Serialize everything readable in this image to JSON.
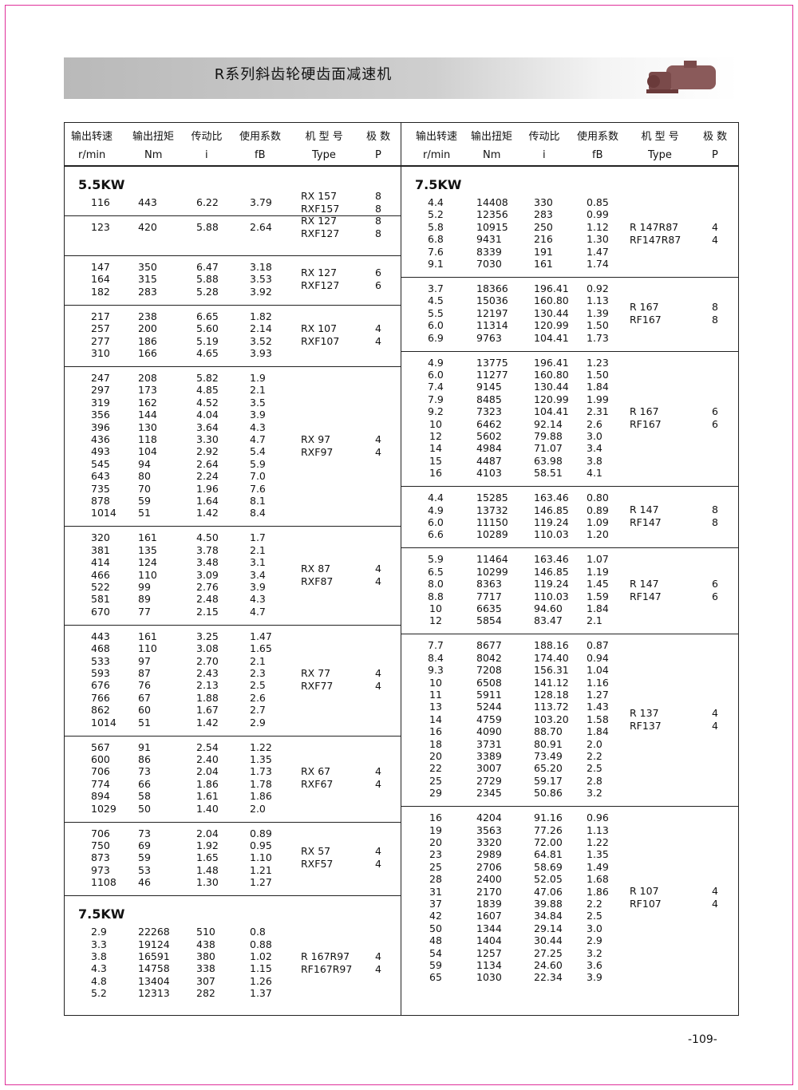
{
  "header": {
    "title": "R系列斜齿轮硬齿面减速机"
  },
  "tables": [
    {
      "columns": [
        {
          "label": "输出转速",
          "unit": "r/min"
        },
        {
          "label": "输出扭矩",
          "unit": "Nm"
        },
        {
          "label": "传动比",
          "unit": "i"
        },
        {
          "label": "使用系数",
          "unit": "fB"
        },
        {
          "label": "机 型 号",
          "unit": "Type"
        },
        {
          "label": "极 数",
          "unit": "P"
        }
      ],
      "groups": [
        {
          "power": "5.5KW",
          "rows": [
            [
              "116",
              "443",
              "6.22",
              "3.79"
            ]
          ],
          "models": [
            [
              "RX 157",
              "8"
            ],
            [
              "RXF157",
              "8"
            ]
          ]
        },
        {
          "rows": [
            [
              "123",
              "420",
              "5.88",
              "2.64"
            ]
          ],
          "models": [
            [
              "RX 127",
              "8"
            ],
            [
              "RXF127",
              "8"
            ]
          ]
        },
        {
          "rows": [
            [
              "147",
              "350",
              "6.47",
              "3.18"
            ],
            [
              "164",
              "315",
              "5.88",
              "3.53"
            ],
            [
              "182",
              "283",
              "5.28",
              "3.92"
            ]
          ],
          "models": [
            [
              "RX 127",
              "6"
            ],
            [
              "RXF127",
              "6"
            ]
          ]
        },
        {
          "rows": [
            [
              "217",
              "238",
              "6.65",
              "1.82"
            ],
            [
              "257",
              "200",
              "5.60",
              "2.14"
            ],
            [
              "277",
              "186",
              "5.19",
              "3.52"
            ],
            [
              "310",
              "166",
              "4.65",
              "3.93"
            ]
          ],
          "models": [
            [
              "RX 107",
              "4"
            ],
            [
              "RXF107",
              "4"
            ]
          ]
        },
        {
          "rows": [
            [
              "247",
              "208",
              "5.82",
              "1.9"
            ],
            [
              "297",
              "173",
              "4.85",
              "2.1"
            ],
            [
              "319",
              "162",
              "4.52",
              "3.5"
            ],
            [
              "356",
              "144",
              "4.04",
              "3.9"
            ],
            [
              "396",
              "130",
              "3.64",
              "4.3"
            ],
            [
              "436",
              "118",
              "3.30",
              "4.7"
            ],
            [
              "493",
              "104",
              "2.92",
              "5.4"
            ],
            [
              "545",
              "94",
              "2.64",
              "5.9"
            ],
            [
              "643",
              "80",
              "2.24",
              "7.0"
            ],
            [
              "735",
              "70",
              "1.96",
              "7.6"
            ],
            [
              "878",
              "59",
              "1.64",
              "8.1"
            ],
            [
              "1014",
              "51",
              "1.42",
              "8.4"
            ]
          ],
          "models": [
            [
              "RX 97",
              "4"
            ],
            [
              "RXF97",
              "4"
            ]
          ]
        },
        {
          "rows": [
            [
              "320",
              "161",
              "4.50",
              "1.7"
            ],
            [
              "381",
              "135",
              "3.78",
              "2.1"
            ],
            [
              "414",
              "124",
              "3.48",
              "3.1"
            ],
            [
              "466",
              "110",
              "3.09",
              "3.4"
            ],
            [
              "522",
              "99",
              "2.76",
              "3.9"
            ],
            [
              "581",
              "89",
              "2.48",
              "4.3"
            ],
            [
              "670",
              "77",
              "2.15",
              "4.7"
            ]
          ],
          "models": [
            [
              "RX 87",
              "4"
            ],
            [
              "RXF87",
              "4"
            ]
          ]
        },
        {
          "rows": [
            [
              "443",
              "161",
              "3.25",
              "1.47"
            ],
            [
              "468",
              "110",
              "3.08",
              "1.65"
            ],
            [
              "533",
              "97",
              "2.70",
              "2.1"
            ],
            [
              "593",
              "87",
              "2.43",
              "2.3"
            ],
            [
              "676",
              "76",
              "2.13",
              "2.5"
            ],
            [
              "766",
              "67",
              "1.88",
              "2.6"
            ],
            [
              "862",
              "60",
              "1.67",
              "2.7"
            ],
            [
              "1014",
              "51",
              "1.42",
              "2.9"
            ]
          ],
          "models": [
            [
              "RX 77",
              "4"
            ],
            [
              "RXF77",
              "4"
            ]
          ]
        },
        {
          "rows": [
            [
              "567",
              "91",
              "2.54",
              "1.22"
            ],
            [
              "600",
              "86",
              "2.40",
              "1.35"
            ],
            [
              "706",
              "73",
              "2.04",
              "1.73"
            ],
            [
              "774",
              "66",
              "1.86",
              "1.78"
            ],
            [
              "894",
              "58",
              "1.61",
              "1.86"
            ],
            [
              "1029",
              "50",
              "1.40",
              "2.0"
            ]
          ],
          "models": [
            [
              "RX 67",
              "4"
            ],
            [
              "RXF67",
              "4"
            ]
          ]
        },
        {
          "rows": [
            [
              "706",
              "73",
              "2.04",
              "0.89"
            ],
            [
              "750",
              "69",
              "1.92",
              "0.95"
            ],
            [
              "873",
              "59",
              "1.65",
              "1.10"
            ],
            [
              "973",
              "53",
              "1.48",
              "1.21"
            ],
            [
              "1108",
              "46",
              "1.30",
              "1.27"
            ]
          ],
          "models": [
            [
              "RX 57",
              "4"
            ],
            [
              "RXF57",
              "4"
            ]
          ]
        },
        {
          "power": "7.5KW",
          "rows": [
            [
              "2.9",
              "22268",
              "510",
              "0.8"
            ],
            [
              "3.3",
              "19124",
              "438",
              "0.88"
            ],
            [
              "3.8",
              "16591",
              "380",
              "1.02"
            ],
            [
              "4.3",
              "14758",
              "338",
              "1.15"
            ],
            [
              "4.8",
              "13404",
              "307",
              "1.26"
            ],
            [
              "5.2",
              "12313",
              "282",
              "1.37"
            ]
          ],
          "models": [
            [
              "R 167R97",
              "4"
            ],
            [
              "RF167R97",
              "4"
            ]
          ]
        }
      ]
    },
    {
      "columns": [
        {
          "label": "输出转速",
          "unit": "r/min"
        },
        {
          "label": "输出扭矩",
          "unit": "Nm"
        },
        {
          "label": "传动比",
          "unit": "i"
        },
        {
          "label": "使用系数",
          "unit": "fB"
        },
        {
          "label": "机 型 号",
          "unit": "Type"
        },
        {
          "label": "极 数",
          "unit": "P"
        }
      ],
      "groups": [
        {
          "power": "7.5KW",
          "rows": [
            [
              "4.4",
              "14408",
              "330",
              "0.85"
            ],
            [
              "5.2",
              "12356",
              "283",
              "0.99"
            ],
            [
              "5.8",
              "10915",
              "250",
              "1.12"
            ],
            [
              "6.8",
              "9431",
              "216",
              "1.30"
            ],
            [
              "7.6",
              "8339",
              "191",
              "1.47"
            ],
            [
              "9.1",
              "7030",
              "161",
              "1.74"
            ]
          ],
          "models": [
            [
              "R 147R87",
              "4"
            ],
            [
              "RF147R87",
              "4"
            ]
          ]
        },
        {
          "rows": [
            [
              "3.7",
              "18366",
              "196.41",
              "0.92"
            ],
            [
              "4.5",
              "15036",
              "160.80",
              "1.13"
            ],
            [
              "5.5",
              "12197",
              "130.44",
              "1.39"
            ],
            [
              "6.0",
              "11314",
              "120.99",
              "1.50"
            ],
            [
              "6.9",
              "9763",
              "104.41",
              "1.73"
            ]
          ],
          "models": [
            [
              "R 167",
              "8"
            ],
            [
              "RF167",
              "8"
            ]
          ]
        },
        {
          "rows": [
            [
              "4.9",
              "13775",
              "196.41",
              "1.23"
            ],
            [
              "6.0",
              "11277",
              "160.80",
              "1.50"
            ],
            [
              "7.4",
              "9145",
              "130.44",
              "1.84"
            ],
            [
              "7.9",
              "8485",
              "120.99",
              "1.99"
            ],
            [
              "9.2",
              "7323",
              "104.41",
              "2.31"
            ],
            [
              "10",
              "6462",
              "92.14",
              "2.6"
            ],
            [
              "12",
              "5602",
              "79.88",
              "3.0"
            ],
            [
              "14",
              "4984",
              "71.07",
              "3.4"
            ],
            [
              "15",
              "4487",
              "63.98",
              "3.8"
            ],
            [
              "16",
              "4103",
              "58.51",
              "4.1"
            ]
          ],
          "models": [
            [
              "R 167",
              "6"
            ],
            [
              "RF167",
              "6"
            ]
          ]
        },
        {
          "rows": [
            [
              "4.4",
              "15285",
              "163.46",
              "0.80"
            ],
            [
              "4.9",
              "13732",
              "146.85",
              "0.89"
            ],
            [
              "6.0",
              "11150",
              "119.24",
              "1.09"
            ],
            [
              "6.6",
              "10289",
              "110.03",
              "1.20"
            ]
          ],
          "models": [
            [
              "R 147",
              "8"
            ],
            [
              "RF147",
              "8"
            ]
          ]
        },
        {
          "rows": [
            [
              "5.9",
              "11464",
              "163.46",
              "1.07"
            ],
            [
              "6.5",
              "10299",
              "146.85",
              "1.19"
            ],
            [
              "8.0",
              "8363",
              "119.24",
              "1.45"
            ],
            [
              "8.8",
              "7717",
              "110.03",
              "1.59"
            ],
            [
              "10",
              "6635",
              "94.60",
              "1.84"
            ],
            [
              "12",
              "5854",
              "83.47",
              "2.1"
            ]
          ],
          "models": [
            [
              "R 147",
              "6"
            ],
            [
              "RF147",
              "6"
            ]
          ]
        },
        {
          "rows": [
            [
              "7.7",
              "8677",
              "188.16",
              "0.87"
            ],
            [
              "8.4",
              "8042",
              "174.40",
              "0.94"
            ],
            [
              "9.3",
              "7208",
              "156.31",
              "1.04"
            ],
            [
              "10",
              "6508",
              "141.12",
              "1.16"
            ],
            [
              "11",
              "5911",
              "128.18",
              "1.27"
            ],
            [
              "13",
              "5244",
              "113.72",
              "1.43"
            ],
            [
              "14",
              "4759",
              "103.20",
              "1.58"
            ],
            [
              "16",
              "4090",
              "88.70",
              "1.84"
            ],
            [
              "18",
              "3731",
              "80.91",
              "2.0"
            ],
            [
              "20",
              "3389",
              "73.49",
              "2.2"
            ],
            [
              "22",
              "3007",
              "65.20",
              "2.5"
            ],
            [
              "25",
              "2729",
              "59.17",
              "2.8"
            ],
            [
              "29",
              "2345",
              "50.86",
              "3.2"
            ]
          ],
          "models": [
            [
              "R 137",
              "4"
            ],
            [
              "RF137",
              "4"
            ]
          ]
        },
        {
          "rows": [
            [
              "16",
              "4204",
              "91.16",
              "0.96"
            ],
            [
              "19",
              "3563",
              "77.26",
              "1.13"
            ],
            [
              "20",
              "3320",
              "72.00",
              "1.22"
            ],
            [
              "23",
              "2989",
              "64.81",
              "1.35"
            ],
            [
              "25",
              "2706",
              "58.69",
              "1.49"
            ],
            [
              "28",
              "2400",
              "52.05",
              "1.68"
            ],
            [
              "31",
              "2170",
              "47.06",
              "1.86"
            ],
            [
              "37",
              "1839",
              "39.88",
              "2.2"
            ],
            [
              "42",
              "1607",
              "34.84",
              "2.5"
            ],
            [
              "50",
              "1344",
              "29.14",
              "3.0"
            ],
            [
              "48",
              "1404",
              "30.44",
              "2.9"
            ],
            [
              "54",
              "1257",
              "27.25",
              "3.2"
            ],
            [
              "59",
              "1134",
              "24.60",
              "3.6"
            ],
            [
              "65",
              "1030",
              "22.34",
              "3.9"
            ]
          ],
          "models": [
            [
              "R 107",
              "4"
            ],
            [
              "RF107",
              "4"
            ]
          ]
        }
      ]
    }
  ],
  "footer": {
    "page_number": "-109-"
  }
}
